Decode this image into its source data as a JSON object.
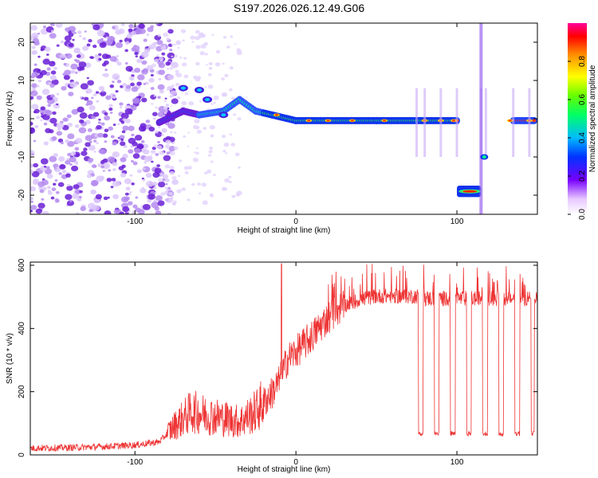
{
  "title": "S197.2026.026.12.49.G06",
  "chart_data": [
    {
      "type": "heatmap",
      "xlabel": "Height of straight line (km)",
      "ylabel": "Frequency (Hz)",
      "xlim": [
        -165,
        150
      ],
      "ylim": [
        -25,
        25
      ],
      "xticks": [
        -100,
        0,
        100
      ],
      "yticks": [
        -20,
        -10,
        0,
        10,
        20
      ],
      "colorbar": {
        "label": "Normalized spectral amplitude",
        "range": [
          0,
          1
        ],
        "ticks": [
          "0.0",
          "0.2",
          "0.4",
          "0.6",
          "0.8"
        ],
        "tick_values": [
          0,
          0.2,
          0.4,
          0.6,
          0.8
        ]
      },
      "ridge": {
        "description_points": [
          {
            "x": -95,
            "y": -9
          },
          {
            "x": -85,
            "y": -1
          },
          {
            "x": -70,
            "y": 2
          },
          {
            "x": -60,
            "y": 1
          },
          {
            "x": -45,
            "y": 2
          },
          {
            "x": -35,
            "y": 5
          },
          {
            "x": -25,
            "y": 2
          },
          {
            "x": -15,
            "y": 1
          },
          {
            "x": 0,
            "y": -0.5
          },
          {
            "x": 50,
            "y": -0.5
          },
          {
            "x": 100,
            "y": -0.5
          },
          {
            "x": 108,
            "y": -19
          },
          {
            "x": 118,
            "y": -10
          },
          {
            "x": 135,
            "y": -0.5
          },
          {
            "x": 148,
            "y": -0.5
          }
        ]
      }
    },
    {
      "type": "line",
      "xlabel": "Height of straight line (km)",
      "ylabel": "SNR (10 * v/v)",
      "xlim": [
        -165,
        150
      ],
      "ylim": [
        0,
        610
      ],
      "xticks": [
        -100,
        0,
        100
      ],
      "yticks": [
        0,
        200,
        400,
        600
      ],
      "color": "#ee3333",
      "series": [
        {
          "name": "SNR",
          "x": [
            -165,
            -140,
            -120,
            -100,
            -85,
            -75,
            -65,
            -55,
            -45,
            -35,
            -25,
            -15,
            -10,
            -5,
            0,
            10,
            20,
            30,
            40,
            50,
            60,
            70,
            76,
            77,
            80,
            85,
            86,
            90,
            95,
            96,
            100,
            105,
            106,
            110,
            115,
            116,
            120,
            125,
            126,
            130,
            135,
            136,
            140,
            145,
            146,
            150
          ],
          "values": [
            20,
            22,
            25,
            30,
            40,
            90,
            130,
            120,
            110,
            100,
            130,
            190,
            230,
            300,
            320,
            370,
            430,
            470,
            490,
            500,
            500,
            500,
            500,
            70,
            500,
            500,
            60,
            500,
            500,
            60,
            500,
            500,
            60,
            500,
            500,
            60,
            500,
            500,
            60,
            500,
            500,
            60,
            500,
            500,
            60,
            510
          ]
        }
      ],
      "spikes": [
        {
          "x": -9,
          "value": 605
        }
      ]
    }
  ]
}
